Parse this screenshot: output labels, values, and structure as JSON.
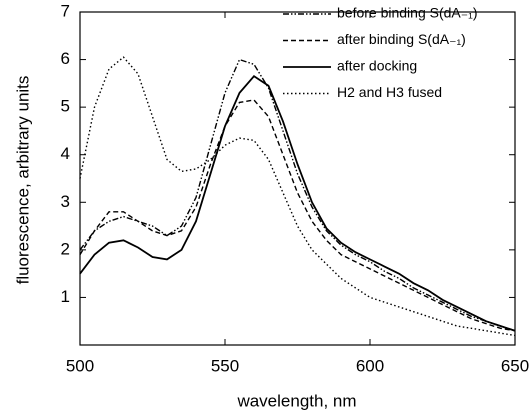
{
  "chart_data": {
    "type": "line",
    "xlabel": "wavelength, nm",
    "ylabel": "fluorescence, arbitrary units",
    "x": [
      500,
      505,
      510,
      515,
      520,
      525,
      530,
      535,
      540,
      545,
      550,
      555,
      560,
      565,
      570,
      575,
      580,
      585,
      590,
      595,
      600,
      605,
      610,
      615,
      620,
      625,
      630,
      635,
      640,
      645,
      650
    ],
    "series": [
      {
        "name": "before binding S(dA₋₁)",
        "color": "#000000",
        "linestyle": "dashdotdot",
        "values": [
          2.0,
          2.4,
          2.6,
          2.7,
          2.6,
          2.5,
          2.3,
          2.5,
          3.1,
          4.2,
          5.3,
          6.0,
          5.9,
          5.4,
          4.5,
          3.6,
          2.9,
          2.4,
          2.1,
          1.9,
          1.75,
          1.55,
          1.4,
          1.2,
          1.05,
          0.9,
          0.75,
          0.6,
          0.5,
          0.4,
          0.3
        ]
      },
      {
        "name": "after binding S(dA₋₁)",
        "color": "#000000",
        "linestyle": "dashed",
        "values": [
          1.9,
          2.4,
          2.8,
          2.8,
          2.6,
          2.4,
          2.3,
          2.4,
          2.9,
          3.8,
          4.6,
          5.1,
          5.15,
          4.8,
          4.0,
          3.2,
          2.6,
          2.2,
          1.9,
          1.75,
          1.6,
          1.45,
          1.3,
          1.15,
          1.0,
          0.85,
          0.7,
          0.55,
          0.45,
          0.35,
          0.3
        ]
      },
      {
        "name": "after docking",
        "color": "#000000",
        "linestyle": "solid",
        "values": [
          1.5,
          1.9,
          2.15,
          2.2,
          2.05,
          1.85,
          1.8,
          2.0,
          2.6,
          3.6,
          4.6,
          5.3,
          5.65,
          5.45,
          4.7,
          3.8,
          3.0,
          2.45,
          2.15,
          1.95,
          1.8,
          1.65,
          1.5,
          1.3,
          1.15,
          0.95,
          0.8,
          0.65,
          0.5,
          0.4,
          0.3
        ]
      },
      {
        "name": "H2 and H3 fused",
        "color": "#000000",
        "linestyle": "dotted",
        "values": [
          3.5,
          5.0,
          5.8,
          6.05,
          5.7,
          4.8,
          3.9,
          3.65,
          3.7,
          3.9,
          4.2,
          4.35,
          4.3,
          3.9,
          3.2,
          2.5,
          2.0,
          1.7,
          1.4,
          1.2,
          1.0,
          0.9,
          0.8,
          0.7,
          0.6,
          0.5,
          0.4,
          0.35,
          0.3,
          0.25,
          0.2
        ]
      }
    ],
    "xlim": [
      500,
      650
    ],
    "xticks": [
      500,
      550,
      600,
      650
    ],
    "ylim": [
      0,
      7
    ],
    "yticks": [
      1,
      2,
      3,
      4,
      5,
      6,
      7
    ],
    "legend": "upper right",
    "grid": false
  }
}
